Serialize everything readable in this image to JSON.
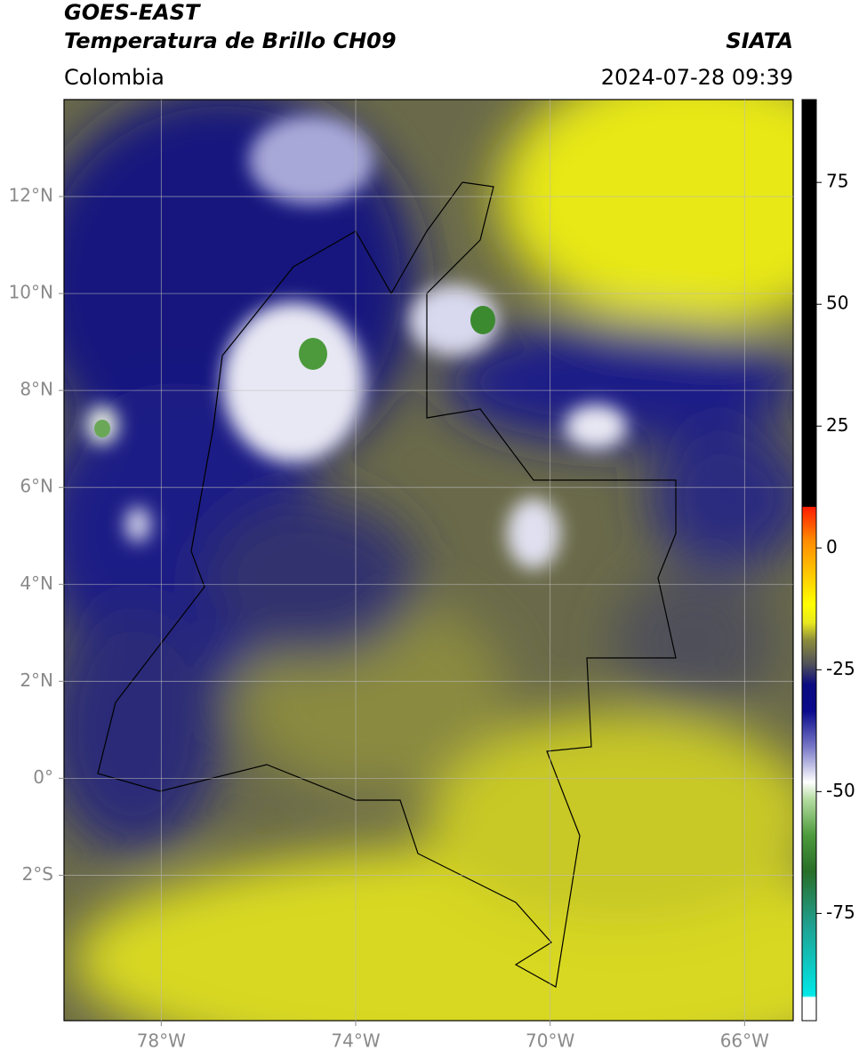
{
  "header": {
    "title": "GOES-EAST",
    "subtitle": "Temperatura de Brillo CH09",
    "region": "Colombia",
    "source": "SIATA",
    "datetime": "2024-07-28 09:39"
  },
  "map": {
    "type": "map",
    "xlim": [
      -80,
      -65
    ],
    "ylim": [
      -5,
      14
    ],
    "xticks": [
      {
        "value": -78,
        "label": "78°W"
      },
      {
        "value": -74,
        "label": "74°W"
      },
      {
        "value": -70,
        "label": "70°W"
      },
      {
        "value": -66,
        "label": "66°W"
      }
    ],
    "yticks": [
      {
        "value": 12,
        "label": "12°N"
      },
      {
        "value": 10,
        "label": "10°N"
      },
      {
        "value": 8,
        "label": "8°N"
      },
      {
        "value": 6,
        "label": "6°N"
      },
      {
        "value": 4,
        "label": "4°N"
      },
      {
        "value": 2,
        "label": "2°N"
      },
      {
        "value": 0,
        "label": "0°"
      },
      {
        "value": -2,
        "label": "2°S"
      }
    ],
    "grid": true
  },
  "colorbar": {
    "lim": [
      -97,
      92
    ],
    "ticks": [
      75,
      50,
      25,
      0,
      -25,
      -50,
      -75
    ]
  }
}
